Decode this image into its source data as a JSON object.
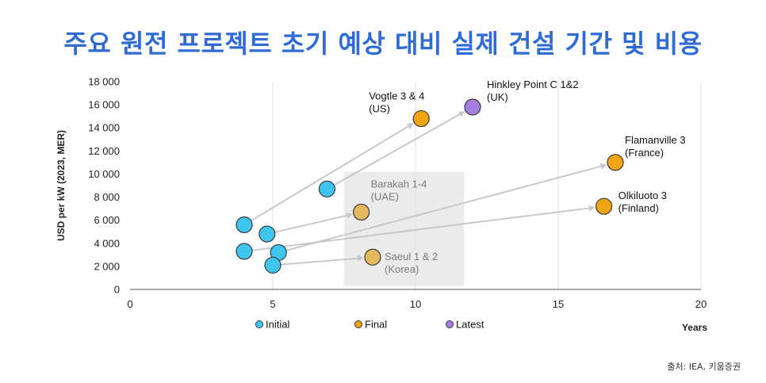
{
  "title": "주요 원전 프로젝트 초기 예상 대비 실제 건설 기간 및 비용",
  "source": "출처: IEA, 키움증권",
  "colors": {
    "initial": "#3EC6F0",
    "final": "#F0A411",
    "final_muted": "#E6B960",
    "latest": "#A67DE0",
    "arrow": "#C8C8C8",
    "highlight_box": "#EBEBEB",
    "title": "#2E6BD6"
  },
  "chart_data": {
    "type": "scatter",
    "title": "주요 원전 프로젝트 초기 예상 대비 실제 건설 기간 및 비용",
    "xlabel": "Years",
    "ylabel": "USD per kW (2023, MER)",
    "xlim": [
      0,
      20
    ],
    "ylim": [
      0,
      18000
    ],
    "x_ticks": [
      "0",
      "5",
      "10",
      "15",
      "20"
    ],
    "y_ticks": [
      "0",
      "2 000",
      "4 000",
      "6 000",
      "8 000",
      "10 000",
      "12 000",
      "14 000",
      "16 000",
      "18 000"
    ],
    "grid": "vertical",
    "legend_position": "bottom",
    "legend": [
      {
        "key": "initial",
        "label": "Initial"
      },
      {
        "key": "final",
        "label": "Final"
      },
      {
        "key": "latest",
        "label": "Latest"
      }
    ],
    "highlight_region": {
      "x": [
        7.5,
        11.7
      ],
      "y": [
        300,
        10200
      ]
    },
    "projects": [
      {
        "name": "Vogtle 3 & 4",
        "region": "(US)",
        "initial": {
          "x": 4.0,
          "y": 5600
        },
        "end": {
          "x": 10.2,
          "y": 14800
        },
        "end_type": "final",
        "muted": false
      },
      {
        "name": "Hinkley Point C 1&2",
        "region": "(UK)",
        "initial": {
          "x": 6.9,
          "y": 8700
        },
        "end": {
          "x": 12.0,
          "y": 15800
        },
        "end_type": "latest",
        "muted": false
      },
      {
        "name": "Flamanville 3",
        "region": "(France)",
        "initial": {
          "x": 5.2,
          "y": 3200
        },
        "end": {
          "x": 17.0,
          "y": 11000
        },
        "end_type": "final",
        "muted": false
      },
      {
        "name": "Olkiluoto 3",
        "region": "(Finland)",
        "initial": {
          "x": 4.0,
          "y": 3300
        },
        "end": {
          "x": 16.6,
          "y": 7200
        },
        "end_type": "final",
        "muted": false
      },
      {
        "name": "Barakah 1-4",
        "region": "(UAE)",
        "initial": {
          "x": 4.8,
          "y": 4800
        },
        "end": {
          "x": 8.1,
          "y": 6700
        },
        "end_type": "final",
        "muted": true
      },
      {
        "name": "Saeul 1 & 2",
        "region": "(Korea)",
        "initial": {
          "x": 5.0,
          "y": 2100
        },
        "end": {
          "x": 8.5,
          "y": 2800
        },
        "end_type": "final",
        "muted": true
      }
    ]
  }
}
